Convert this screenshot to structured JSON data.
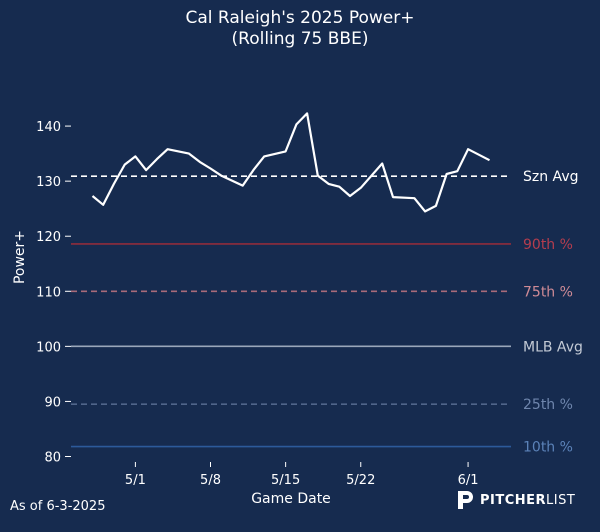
{
  "header": {
    "title_line1": "Cal Raleigh's 2025 Power+",
    "title_line2": "(Rolling 75 BBE)"
  },
  "footer": {
    "as_of": "As of 6-3-2025",
    "logo_bold": "PITCHER",
    "logo_light": "LIST"
  },
  "chart_data": {
    "type": "line",
    "title": "Cal Raleigh's 2025 Power+ (Rolling 75 BBE)",
    "xlabel": "Game Date",
    "ylabel": "Power+",
    "ylim": [
      79,
      152
    ],
    "xlim": [
      "2025-04-25",
      "2025-06-05"
    ],
    "yticks": [
      80,
      90,
      100,
      110,
      120,
      130,
      140
    ],
    "xticks": [
      {
        "date": "2025-05-01",
        "label": "5/1"
      },
      {
        "date": "2025-05-08",
        "label": "5/8"
      },
      {
        "date": "2025-05-15",
        "label": "5/15"
      },
      {
        "date": "2025-05-22",
        "label": "5/22"
      },
      {
        "date": "2025-06-01",
        "label": "6/1"
      }
    ],
    "grid": false,
    "series": [
      {
        "color": "#ffffff",
        "x": [
          "2025-04-27",
          "2025-04-28",
          "2025-04-29",
          "2025-04-30",
          "2025-05-01",
          "2025-05-02",
          "2025-05-03",
          "2025-05-04",
          "2025-05-06",
          "2025-05-07",
          "2025-05-08",
          "2025-05-09",
          "2025-05-11",
          "2025-05-12",
          "2025-05-13",
          "2025-05-15",
          "2025-05-16",
          "2025-05-17",
          "2025-05-18",
          "2025-05-19",
          "2025-05-20",
          "2025-05-21",
          "2025-05-22",
          "2025-05-24",
          "2025-05-25",
          "2025-05-27",
          "2025-05-28",
          "2025-05-29",
          "2025-05-30",
          "2025-05-31",
          "2025-06-01",
          "2025-06-03"
        ],
        "values": [
          127.3,
          125.7,
          129.5,
          133.0,
          134.5,
          132.0,
          134.0,
          135.8,
          135.0,
          133.5,
          132.3,
          131.0,
          129.2,
          132.0,
          134.5,
          135.4,
          140.3,
          142.3,
          131.0,
          129.5,
          129.0,
          127.3,
          128.8,
          133.2,
          127.1,
          126.9,
          124.5,
          125.5,
          131.3,
          131.8,
          135.8,
          133.8
        ]
      }
    ],
    "reference_lines": [
      {
        "label": "Szn Avg",
        "value": 130.9,
        "color": "#ffffff",
        "dash": "dashed",
        "label_color": "#ffffff"
      },
      {
        "label": "90th %",
        "value": 118.6,
        "color": "#8f2d3c",
        "dash": "solid",
        "label_color": "#b43d4e"
      },
      {
        "label": "75th %",
        "value": 110.0,
        "color": "#a86a79",
        "dash": "dashed",
        "label_color": "#cf8b96"
      },
      {
        "label": "MLB Avg",
        "value": 100.0,
        "color": "#9aa7ba",
        "dash": "solid",
        "label_color": "#c3cad5"
      },
      {
        "label": "25th %",
        "value": 89.5,
        "color": "#50658a",
        "dash": "dashed",
        "label_color": "#6f86ad"
      },
      {
        "label": "10th %",
        "value": 81.8,
        "color": "#2c5a9a",
        "dash": "solid",
        "label_color": "#5b82b8"
      }
    ]
  }
}
